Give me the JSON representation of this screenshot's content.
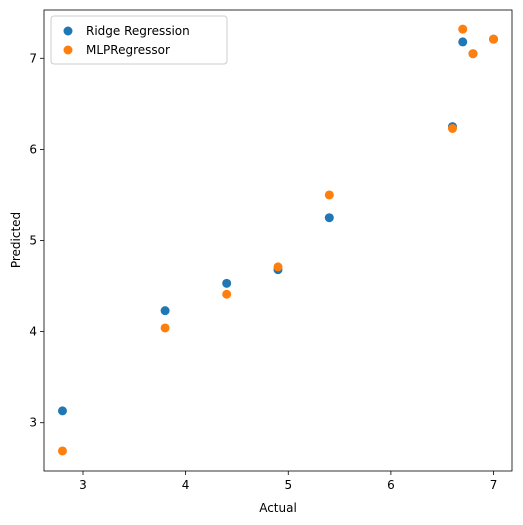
{
  "chart_data": {
    "type": "scatter",
    "xlabel": "Actual",
    "ylabel": "Predicted",
    "xlim": [
      2.62,
      7.18
    ],
    "ylim": [
      2.47,
      7.53
    ],
    "xticks": [
      3,
      4,
      5,
      6,
      7
    ],
    "yticks": [
      3,
      4,
      5,
      6,
      7
    ],
    "legend_position": "upper-left",
    "grid": false,
    "series": [
      {
        "name": "Ridge Regression",
        "color": "#1f77b4",
        "points": [
          {
            "x": 2.8,
            "y": 3.13
          },
          {
            "x": 3.8,
            "y": 4.23
          },
          {
            "x": 4.4,
            "y": 4.53
          },
          {
            "x": 4.9,
            "y": 4.68
          },
          {
            "x": 5.4,
            "y": 5.25
          },
          {
            "x": 6.6,
            "y": 6.25
          },
          {
            "x": 6.7,
            "y": 7.18
          },
          {
            "x": 6.8,
            "y": 7.05
          },
          {
            "x": 7.0,
            "y": 7.21
          }
        ]
      },
      {
        "name": "MLPRegressor",
        "color": "#ff7f0e",
        "points": [
          {
            "x": 2.8,
            "y": 2.69
          },
          {
            "x": 3.8,
            "y": 4.04
          },
          {
            "x": 4.4,
            "y": 4.41
          },
          {
            "x": 4.9,
            "y": 4.71
          },
          {
            "x": 5.4,
            "y": 5.5
          },
          {
            "x": 6.6,
            "y": 6.23
          },
          {
            "x": 6.7,
            "y": 7.32
          },
          {
            "x": 6.8,
            "y": 7.05
          },
          {
            "x": 7.0,
            "y": 7.21
          }
        ]
      }
    ]
  }
}
